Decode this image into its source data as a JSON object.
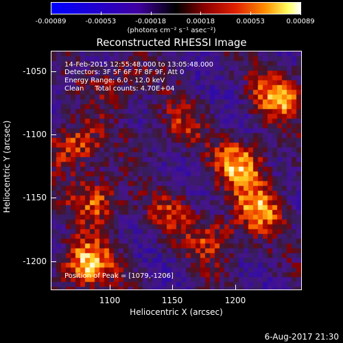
{
  "colorbar": {
    "tick_labels": [
      "-0.00089",
      "-0.00053",
      "-0.00018",
      "0.00018",
      "0.00053",
      "0.00089"
    ],
    "units_text": "(photons cm⁻² s⁻¹ asec⁻²)",
    "colors": {
      "low": "#0000ff",
      "mid": "#000000",
      "red": "#d40000",
      "orange": "#ff8000",
      "high": "#ffffff"
    }
  },
  "title": "Reconstructed RHESSI Image",
  "annotations": {
    "time": "14-Feb-2015 12:55:48.000 to 13:05:48.000",
    "detectors": "Detectors: 3F 5F 6F 7F 8F 9F, Att 0",
    "energy": "Energy Range: 6.0 - 12.0 keV",
    "clean": "Clean     Total counts: 4.70E+04",
    "peak": "Position of Peak = [1079,-1206]"
  },
  "axes": {
    "ylabel": "Heliocentric Y (arcsec)",
    "xlabel": "Heliocentric X (arcsec)",
    "yticks": [
      "-1050",
      "-1100",
      "-1150",
      "-1200"
    ],
    "xticks": [
      "1100",
      "1150",
      "1200"
    ]
  },
  "footer": "6-Aug-2017 21:30",
  "chart_data": {
    "type": "heatmap",
    "title": "Reconstructed RHESSI Image",
    "xlabel": "Heliocentric X (arcsec)",
    "ylabel": "Heliocentric Y (arcsec)",
    "xlim": [
      1054,
      1246
    ],
    "ylim": [
      -1225,
      -1035
    ],
    "zlim": [
      -0.00089,
      0.00089
    ],
    "peak": [
      1079,
      -1206
    ],
    "hot_regions": [
      {
        "x": 1080,
        "y": -1205,
        "level": 1.0
      },
      {
        "x": 1200,
        "y": -1125,
        "level": 0.9
      },
      {
        "x": 1230,
        "y": -1070,
        "level": 0.85
      },
      {
        "x": 1072,
        "y": -1110,
        "level": 0.75
      },
      {
        "x": 1090,
        "y": -1155,
        "level": 0.7
      },
      {
        "x": 1215,
        "y": -1160,
        "level": 0.75
      },
      {
        "x": 1180,
        "y": -1185,
        "level": 0.55
      },
      {
        "x": 1105,
        "y": -1060,
        "level": 0.45
      },
      {
        "x": 1150,
        "y": -1095,
        "level": 0.45
      },
      {
        "x": 1145,
        "y": -1165,
        "level": 0.4
      }
    ]
  }
}
